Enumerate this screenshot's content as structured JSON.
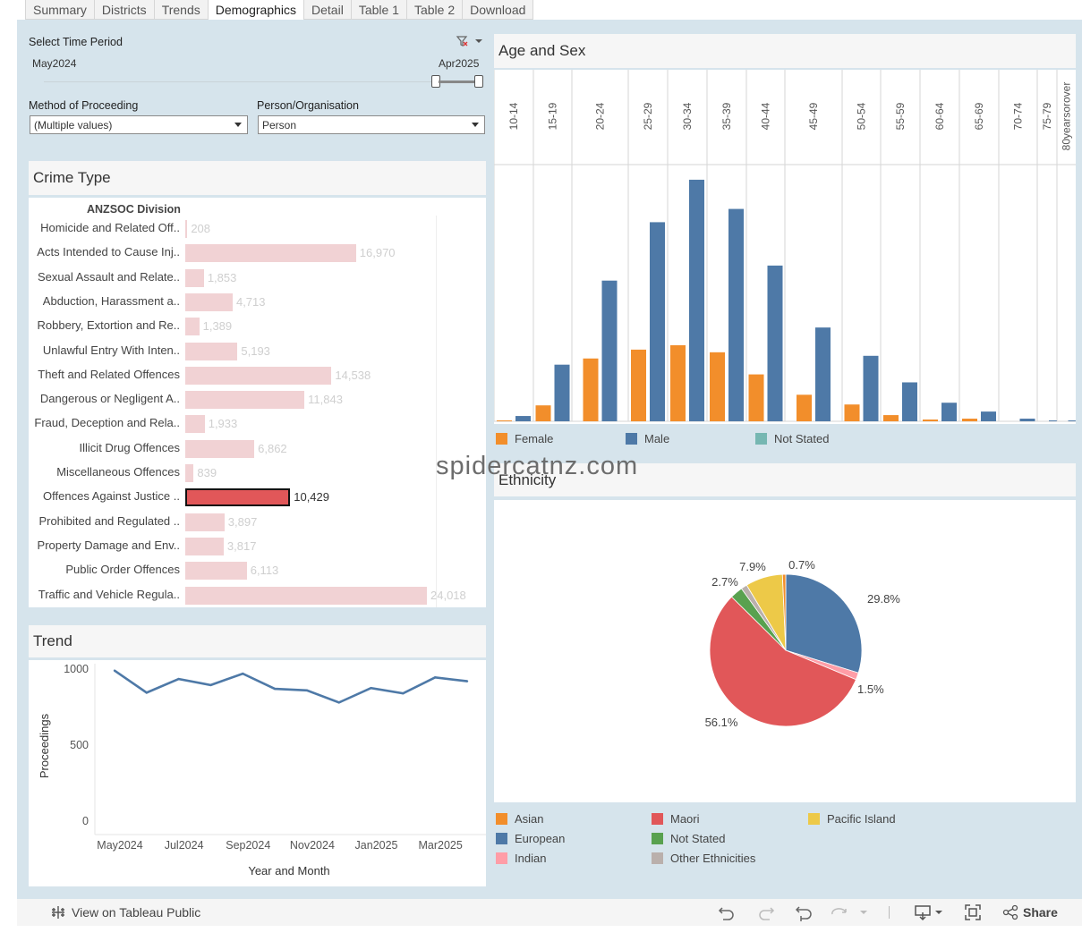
{
  "tabs": [
    {
      "label": "Summary",
      "active": false
    },
    {
      "label": "Districts",
      "active": false
    },
    {
      "label": "Trends",
      "active": false
    },
    {
      "label": "Demographics",
      "active": true
    },
    {
      "label": "Detail",
      "active": false
    },
    {
      "label": "Table 1",
      "active": false
    },
    {
      "label": "Table 2",
      "active": false
    },
    {
      "label": "Download",
      "active": false
    }
  ],
  "filters": {
    "time_period_label": "Select Time Period",
    "start": "May2024",
    "end": "Apr2025",
    "method_label": "Method of Proceeding",
    "method_value": "(Multiple values)",
    "person_label": "Person/Organisation",
    "person_value": "Person"
  },
  "crime_type": {
    "title": "Crime Type",
    "column_header": "ANZSOC Division",
    "max": 24018,
    "rows": [
      {
        "label": "Homicide and Related Off..",
        "value": 208,
        "display": "208"
      },
      {
        "label": "Acts Intended to Cause Inj..",
        "value": 16970,
        "display": "16,970"
      },
      {
        "label": "Sexual Assault and Relate..",
        "value": 1853,
        "display": "1,853"
      },
      {
        "label": "Abduction, Harassment a..",
        "value": 4713,
        "display": "4,713"
      },
      {
        "label": "Robbery, Extortion and Re..",
        "value": 1389,
        "display": "1,389"
      },
      {
        "label": "Unlawful Entry With Inten..",
        "value": 5193,
        "display": "5,193"
      },
      {
        "label": "Theft and Related Offences",
        "value": 14538,
        "display": "14,538"
      },
      {
        "label": "Dangerous or Negligent A..",
        "value": 11843,
        "display": "11,843"
      },
      {
        "label": "Fraud, Deception and Rela..",
        "value": 1933,
        "display": "1,933"
      },
      {
        "label": "Illicit Drug Offences",
        "value": 6862,
        "display": "6,862"
      },
      {
        "label": "Miscellaneous Offences",
        "value": 839,
        "display": "839"
      },
      {
        "label": "Offences Against Justice ..",
        "value": 10429,
        "display": "10,429",
        "selected": true
      },
      {
        "label": "Prohibited and Regulated ..",
        "value": 3897,
        "display": "3,897"
      },
      {
        "label": "Property Damage and Env..",
        "value": 3817,
        "display": "3,817"
      },
      {
        "label": "Public Order Offences",
        "value": 6113,
        "display": "6,113"
      },
      {
        "label": "Traffic and Vehicle Regula..",
        "value": 24018,
        "display": "24,018"
      }
    ]
  },
  "chart_data": [
    {
      "type": "line",
      "title": "Trend",
      "xlabel": "Year and Month",
      "ylabel": "Proceedings",
      "x": [
        "May2024",
        "Jun2024",
        "Jul2024",
        "Aug2024",
        "Sep2024",
        "Oct2024",
        "Nov2024",
        "Dec2024",
        "Jan2025",
        "Feb2025",
        "Mar2025",
        "Apr2025"
      ],
      "x_tick_labels": [
        "May2024",
        "Jul2024",
        "Sep2024",
        "Nov2024",
        "Jan2025",
        "Mar2025"
      ],
      "series": [
        {
          "values": [
            990,
            845,
            935,
            895,
            970,
            870,
            860,
            780,
            875,
            840,
            945,
            920
          ]
        }
      ],
      "ylim": [
        0,
        1000
      ],
      "yticks": [
        0,
        500,
        1000
      ],
      "grid": false,
      "color": "#4e79a7"
    },
    {
      "type": "bar",
      "title": "Age and Sex",
      "categories": [
        "10-14",
        "15-19",
        "20-24",
        "25-29",
        "30-34",
        "35-39",
        "40-44",
        "45-49",
        "50-54",
        "55-59",
        "60-64",
        "65-69",
        "70-74",
        "75-79",
        "80yearsorover"
      ],
      "series": [
        {
          "name": "Female",
          "color": "#f28e2b",
          "values": [
            1,
            18,
            71,
            81,
            86,
            78,
            53,
            30,
            19,
            7,
            2,
            3,
            0,
            0,
            0
          ]
        },
        {
          "name": "Male",
          "color": "#4e79a7",
          "values": [
            6,
            64,
            159,
            225,
            273,
            240,
            176,
            106,
            74,
            44,
            21,
            11,
            3,
            1,
            1
          ]
        },
        {
          "name": "Not Stated",
          "color": "#76b7b2",
          "values": [
            0,
            0,
            0,
            0,
            0,
            0,
            0,
            0,
            0,
            0,
            0,
            0,
            0,
            0,
            0
          ]
        }
      ],
      "ylim": [
        0,
        280
      ],
      "legend": "bottom"
    },
    {
      "type": "pie",
      "title": "Ethnicity",
      "slices": [
        {
          "name": "European",
          "value": 29.8,
          "label": "29.8%",
          "color": "#4e79a7"
        },
        {
          "name": "Indian",
          "value": 1.5,
          "label": "1.5%",
          "color": "#ff9da7"
        },
        {
          "name": "Maori",
          "value": 56.1,
          "label": "56.1%",
          "color": "#e15759"
        },
        {
          "name": "Not Stated",
          "value": 2.7,
          "label": "2.7%",
          "color": "#59a14f"
        },
        {
          "name": "Other Ethnicities",
          "value": 1.3,
          "label": "",
          "color": "#bab0ac"
        },
        {
          "name": "Pacific Island",
          "value": 7.9,
          "label": "7.9%",
          "color": "#edc948"
        },
        {
          "name": "Asian",
          "value": 0.7,
          "label": "0.7%",
          "color": "#f28e2b"
        }
      ],
      "legend": "bottom"
    }
  ],
  "ethnicity_legend": [
    {
      "name": "Asian",
      "color": "#f28e2b"
    },
    {
      "name": "Maori",
      "color": "#e15759"
    },
    {
      "name": "Pacific Island",
      "color": "#edc948"
    },
    {
      "name": "European",
      "color": "#4e79a7"
    },
    {
      "name": "Not Stated",
      "color": "#59a14f"
    },
    {
      "name": "Indian",
      "color": "#ff9da7"
    },
    {
      "name": "Other Ethnicities",
      "color": "#bab0ac"
    }
  ],
  "watermark": "spidercatnz.com",
  "toolbar": {
    "view_label": "View on Tableau Public",
    "share_label": "Share",
    "icons": [
      "tableau-icon",
      "undo-icon",
      "redo-icon",
      "revert-icon",
      "refresh-icon",
      "download-icon",
      "fullscreen-icon",
      "share-icon"
    ]
  }
}
